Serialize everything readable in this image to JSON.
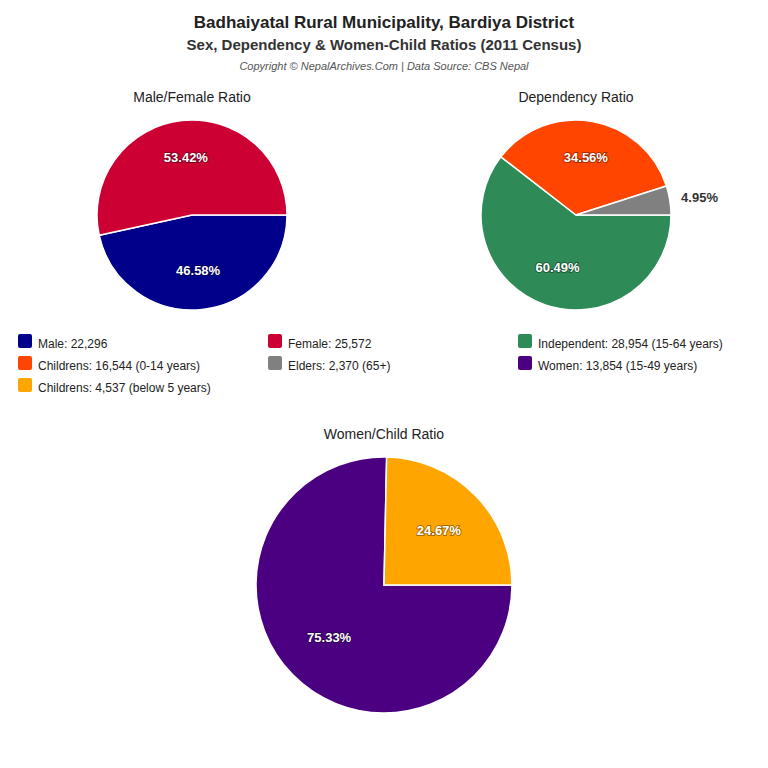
{
  "title": "Badhaiyatal Rural Municipality, Bardiya District",
  "subtitle": "Sex, Dependency & Women-Child Ratios (2011 Census)",
  "annotations": [
    "Copyright © NepalArchives.Com | Data Source: CBS Nepal"
  ],
  "chart_data": [
    {
      "type": "pie",
      "title": "Male/Female Ratio",
      "categories": [
        "Male: 22,296",
        "Female: 25,572"
      ],
      "values": [
        46.58,
        53.42
      ],
      "value_labels": [
        "46.58%",
        "53.42%"
      ],
      "colors": [
        "#00008B",
        "#CC0033"
      ],
      "data_labels": true
    },
    {
      "type": "pie",
      "title": "Dependency Ratio",
      "categories": [
        "Independent: 28,954 (15-64 years)",
        "Childrens: 16,544 (0-14 years)",
        "Elders: 2,370 (65+)"
      ],
      "values": [
        60.49,
        34.56,
        4.95
      ],
      "value_labels": [
        "60.49%",
        "34.56%",
        "4.95%"
      ],
      "colors": [
        "#2E8B57",
        "#FF4500",
        "#808080"
      ],
      "data_labels": true
    },
    {
      "type": "pie",
      "title": "Women/Child Ratio",
      "categories": [
        "Women: 13,854 (15-49 years)",
        "Childrens: 4,537 (below 5 years)"
      ],
      "values": [
        75.33,
        24.67
      ],
      "value_labels": [
        "75.33%",
        "24.67%"
      ],
      "colors": [
        "#4B0082",
        "#FFA500"
      ],
      "data_labels": true
    }
  ]
}
